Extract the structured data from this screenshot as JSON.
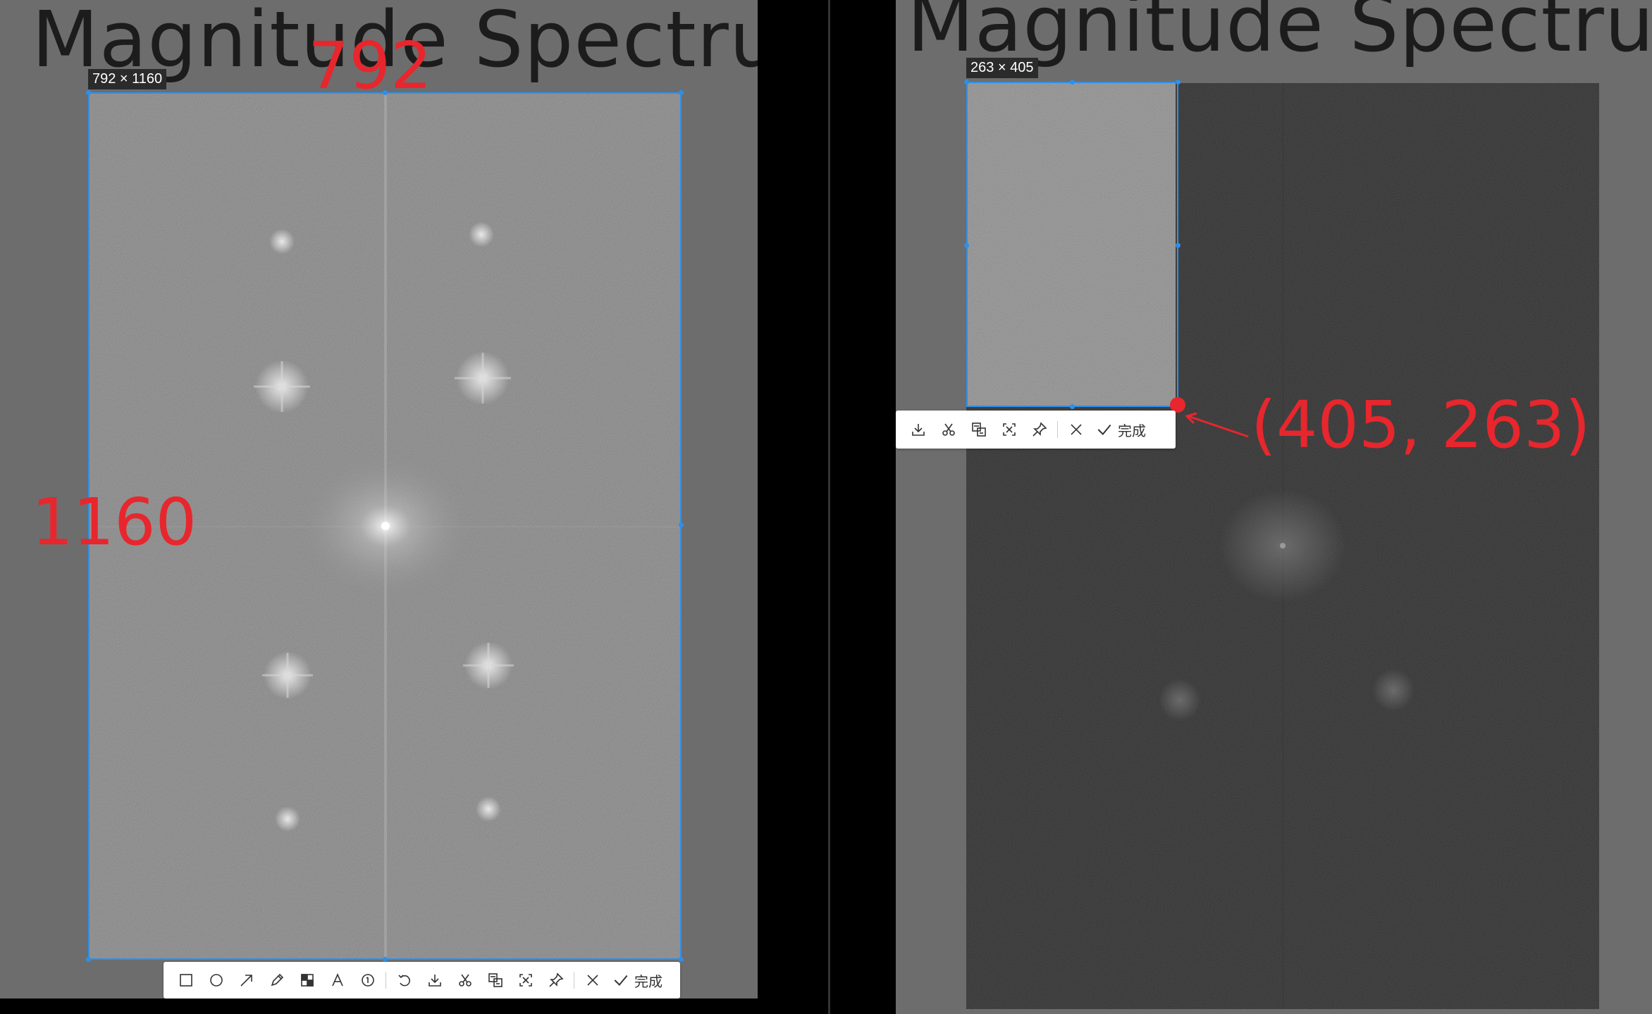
{
  "left_panel": {
    "title": "Magnitude Spectrum",
    "size_label": "792 × 1160",
    "annotations": {
      "width": "792",
      "height": "1160"
    },
    "toolbar": {
      "tools": [
        "rectangle-icon",
        "ellipse-icon",
        "arrow-icon",
        "pencil-icon",
        "mosaic-icon",
        "text-icon",
        "number-marker-icon",
        "undo-icon",
        "download-icon",
        "scissors-icon",
        "translate-icon",
        "ocr-icon",
        "pin-icon"
      ],
      "cancel": "close-icon",
      "done_label": "完成"
    }
  },
  "right_panel": {
    "title": "Magnitude Spectrum",
    "size_label": "263 × 405",
    "annotation_coord": "(405, 263)",
    "toolbar": {
      "tools": [
        "download-icon",
        "scissors-icon",
        "translate-icon",
        "ocr-icon",
        "pin-icon"
      ],
      "cancel": "close-icon",
      "done_label": "完成"
    }
  },
  "colors": {
    "annotation_red": "#e8262d",
    "selection_blue": "#2f8fe8",
    "background_gray": "#6d6d6d",
    "spectrum_gray": "#828282",
    "spectrum_dark": "#2d2d2d"
  }
}
